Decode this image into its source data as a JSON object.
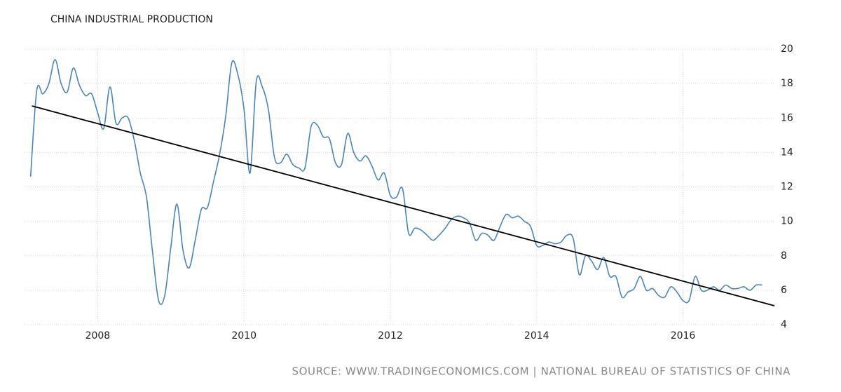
{
  "chart_data": {
    "type": "line",
    "title": "CHINA INDUSTRIAL PRODUCTION",
    "source": "SOURCE:  WWW.TRADINGECONOMICS.COM  |  NATIONAL BUREAU OF STATISTICS OF CHINA",
    "xlim": [
      2007,
      2017.25
    ],
    "xticks": [
      2008,
      2010,
      2012,
      2014,
      2016
    ],
    "ylim": [
      4,
      20
    ],
    "yticks": [
      4,
      6,
      8,
      10,
      12,
      14,
      16,
      18,
      20
    ],
    "grid": true,
    "series": [
      {
        "color": "#4a85b9",
        "smooth": true,
        "x": [
          2007.083,
          2007.167,
          2007.25,
          2007.333,
          2007.417,
          2007.5,
          2007.583,
          2007.667,
          2007.75,
          2007.833,
          2007.917,
          2008.0,
          2008.083,
          2008.167,
          2008.25,
          2008.333,
          2008.417,
          2008.5,
          2008.583,
          2008.667,
          2008.75,
          2008.833,
          2008.917,
          2009.0,
          2009.083,
          2009.167,
          2009.25,
          2009.333,
          2009.417,
          2009.5,
          2009.583,
          2009.667,
          2009.75,
          2009.833,
          2009.917,
          2010.0,
          2010.083,
          2010.167,
          2010.25,
          2010.333,
          2010.417,
          2010.5,
          2010.583,
          2010.667,
          2010.75,
          2010.833,
          2010.917,
          2011.0,
          2011.083,
          2011.167,
          2011.25,
          2011.333,
          2011.417,
          2011.5,
          2011.583,
          2011.667,
          2011.75,
          2011.833,
          2011.917,
          2012.0,
          2012.083,
          2012.167,
          2012.25,
          2012.333,
          2012.417,
          2012.5,
          2012.583,
          2012.667,
          2012.75,
          2012.833,
          2012.917,
          2013.0,
          2013.083,
          2013.167,
          2013.25,
          2013.333,
          2013.417,
          2013.5,
          2013.583,
          2013.667,
          2013.75,
          2013.833,
          2013.917,
          2014.0,
          2014.083,
          2014.167,
          2014.25,
          2014.333,
          2014.417,
          2014.5,
          2014.583,
          2014.667,
          2014.75,
          2014.833,
          2014.917,
          2015.0,
          2015.083,
          2015.167,
          2015.25,
          2015.333,
          2015.417,
          2015.5,
          2015.583,
          2015.667,
          2015.75,
          2015.833,
          2015.917,
          2016.0,
          2016.083,
          2016.167,
          2016.25,
          2016.333,
          2016.417,
          2016.5,
          2016.583,
          2016.667,
          2016.75,
          2016.833,
          2016.917,
          2017.0,
          2017.083
        ],
        "values": [
          12.6,
          17.6,
          17.4,
          18.0,
          19.4,
          18.0,
          17.5,
          18.9,
          17.9,
          17.3,
          17.4,
          16.3,
          15.4,
          17.8,
          15.7,
          16.0,
          16.0,
          14.7,
          12.8,
          11.4,
          8.2,
          5.4,
          5.7,
          8.5,
          11.0,
          8.3,
          7.3,
          8.9,
          10.7,
          10.8,
          12.3,
          13.9,
          16.1,
          19.2,
          18.5,
          16.5,
          12.8,
          18.1,
          17.8,
          16.5,
          13.7,
          13.4,
          13.9,
          13.3,
          13.1,
          13.1,
          15.5,
          15.6,
          14.9,
          14.8,
          13.4,
          13.3,
          15.1,
          14.0,
          13.5,
          13.8,
          13.2,
          12.4,
          12.8,
          11.5,
          11.4,
          11.9,
          9.3,
          9.6,
          9.5,
          9.2,
          8.9,
          9.2,
          9.6,
          10.1,
          10.3,
          10.2,
          9.9,
          8.9,
          9.3,
          9.2,
          8.9,
          9.7,
          10.4,
          10.2,
          10.3,
          10.0,
          9.7,
          8.6,
          8.6,
          8.8,
          8.7,
          8.8,
          9.2,
          9.0,
          6.9,
          8.0,
          7.7,
          7.2,
          7.9,
          6.8,
          6.8,
          5.6,
          5.9,
          6.1,
          6.8,
          6.0,
          6.1,
          5.7,
          5.6,
          6.2,
          5.9,
          5.4,
          5.4,
          6.8,
          6.0,
          6.0,
          6.2,
          6.0,
          6.3,
          6.1,
          6.1,
          6.2,
          6.0,
          6.3,
          6.3
        ]
      },
      {
        "color": "#000000",
        "smooth": false,
        "x": [
          2007.1,
          2017.25
        ],
        "values": [
          16.7,
          5.1
        ]
      }
    ]
  }
}
